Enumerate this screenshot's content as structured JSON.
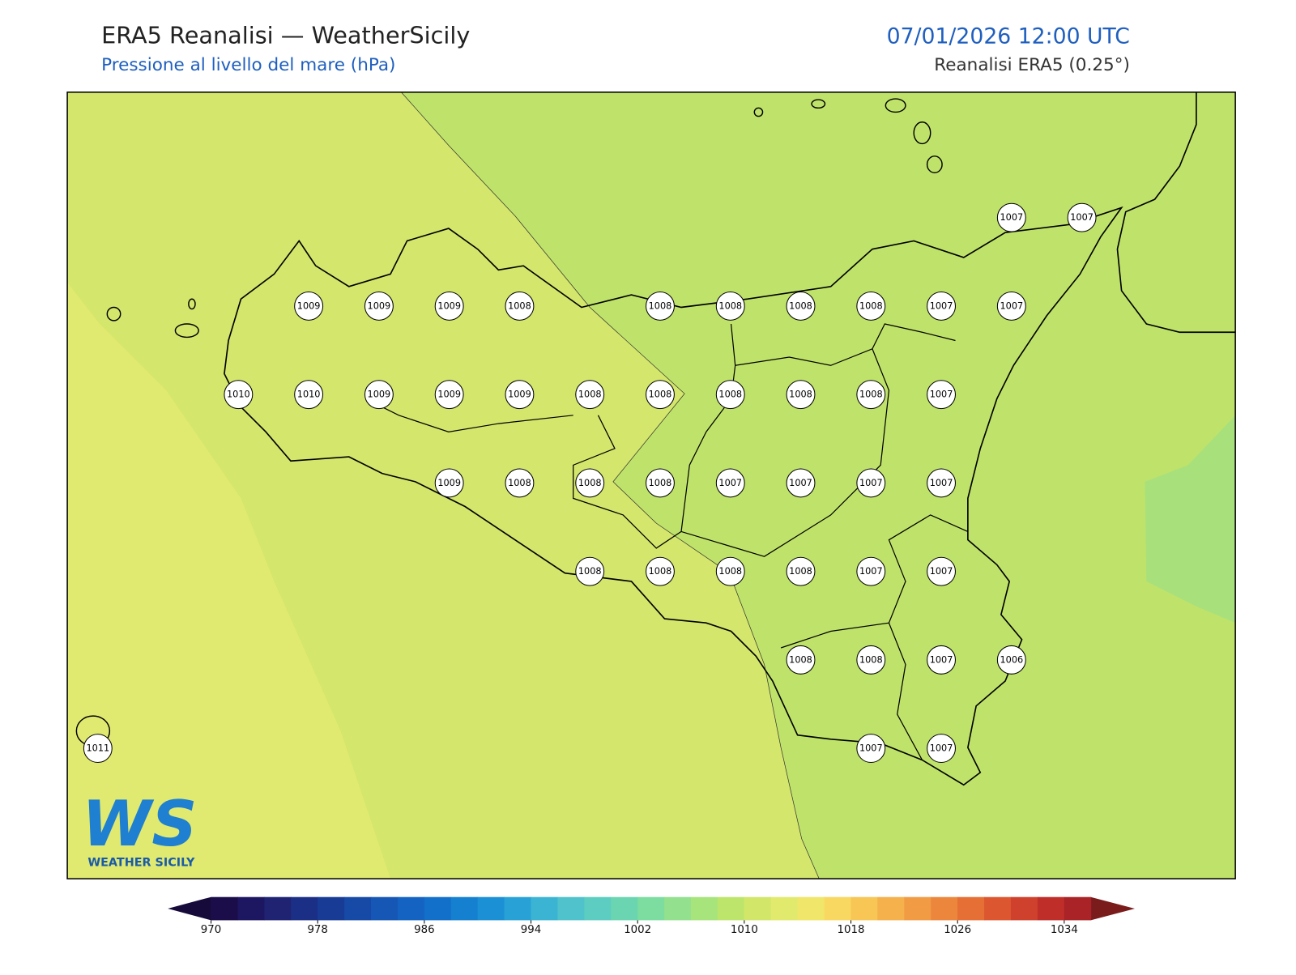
{
  "header": {
    "title": "ERA5 Reanalisi — WeatherSicily",
    "subtitle": "Pressione al livello del mare (hPa)",
    "datetime": "07/01/2026 12:00 UTC",
    "source": "Reanalisi ERA5 (0.25°)"
  },
  "stations": [
    [
      1007,
      1007
    ],
    [
      1009,
      1009,
      1009,
      1008,
      1008,
      1008,
      1008,
      1008,
      1007,
      1007
    ],
    [
      1010,
      1010,
      1009,
      1009,
      1009,
      1008,
      1008,
      1008,
      1008,
      1008,
      1007
    ],
    [
      1009,
      1008,
      1008,
      1008,
      1007,
      1007,
      1007,
      1007
    ],
    [
      1008,
      1008,
      1008,
      1008,
      1007,
      1007
    ],
    [
      1008,
      1008,
      1007,
      1006
    ],
    [
      1011,
      1007,
      1007
    ]
  ],
  "colorbar": {
    "ticks": [
      970,
      978,
      986,
      994,
      1002,
      1010,
      1018,
      1026,
      1034
    ],
    "colors": [
      "#1b0c4a",
      "#1d1660",
      "#1f2372",
      "#1c2f86",
      "#183c96",
      "#1749a6",
      "#1656b4",
      "#1463c2",
      "#1370ca",
      "#1580cf",
      "#1c90d4",
      "#28a2d6",
      "#3bb4d4",
      "#4fc2cc",
      "#5ccdc0",
      "#6ad5b0",
      "#7ddca0",
      "#93e08e",
      "#a8e47c",
      "#bee56b",
      "#d2e76a",
      "#e2ea6d",
      "#f0e66a",
      "#f8d860",
      "#f7c655",
      "#f4b14c",
      "#f19c44",
      "#ec863c",
      "#e56f35",
      "#dc5730",
      "#d0412d",
      "#c02e2a",
      "#a92327"
    ]
  },
  "logo": {
    "mark": "WS",
    "caption": "WEATHER SICILY"
  }
}
